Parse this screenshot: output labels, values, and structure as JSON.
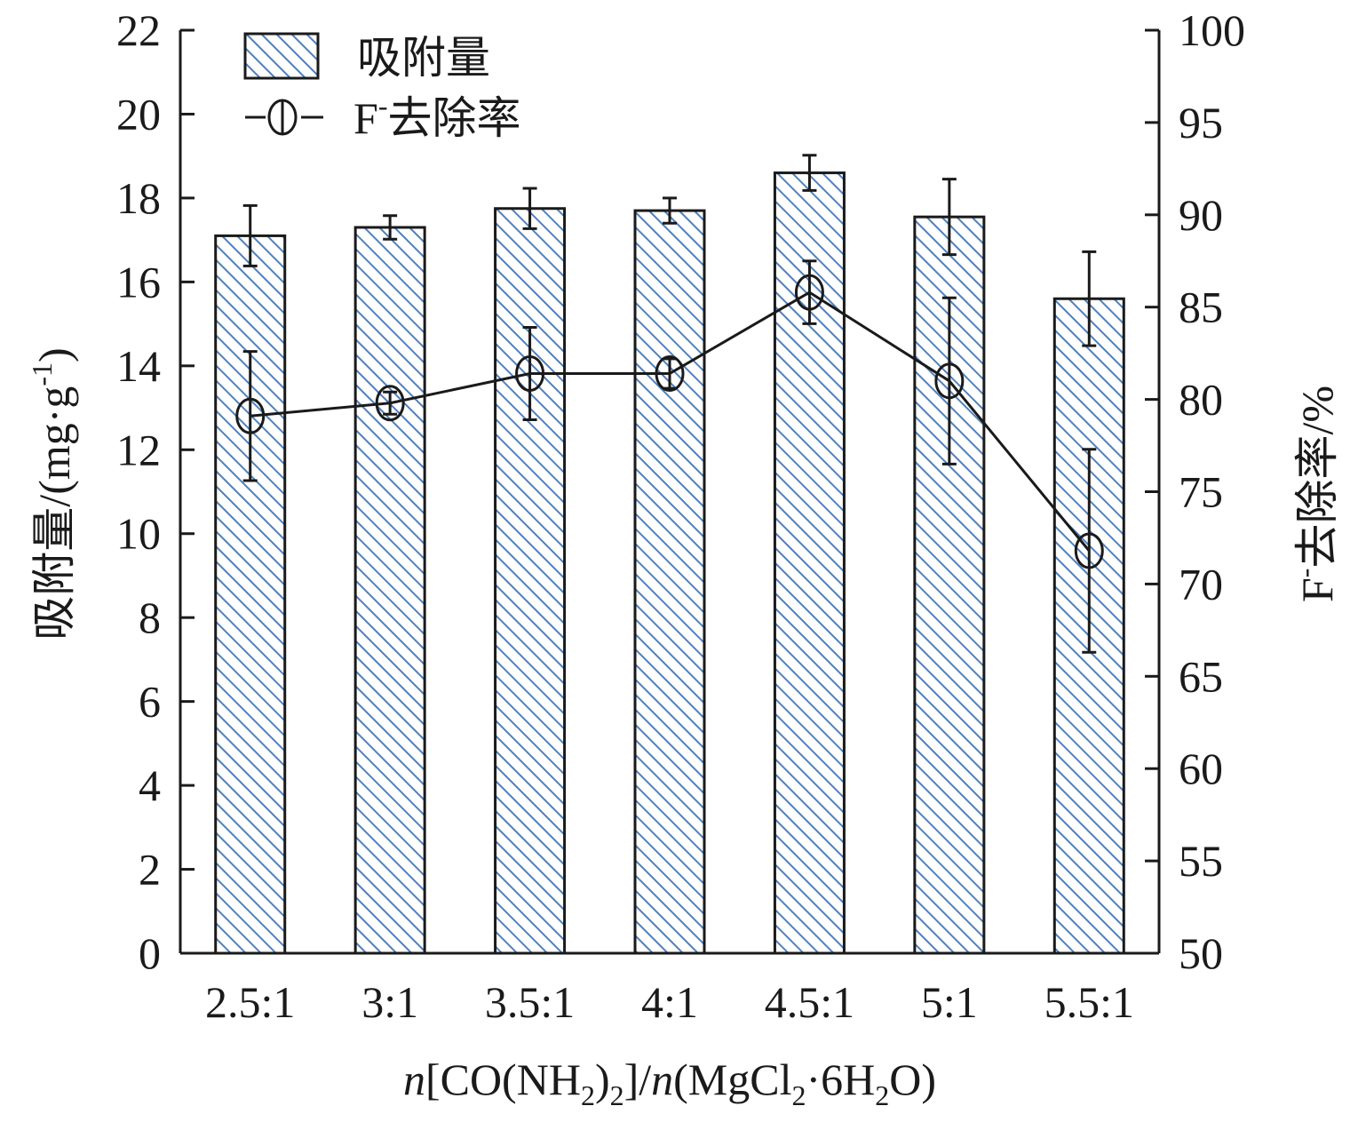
{
  "chart_data": {
    "type": "bar",
    "categories": [
      "2.5:1",
      "3:1",
      "3.5:1",
      "4:1",
      "4.5:1",
      "5:1",
      "5.5:1"
    ],
    "series": [
      {
        "name": "吸附量",
        "type": "bar",
        "axis": "left",
        "values": [
          17.1,
          17.3,
          17.75,
          17.7,
          18.6,
          17.55,
          15.6
        ],
        "errors": [
          0.72,
          0.28,
          0.48,
          0.3,
          0.42,
          0.9,
          1.12
        ]
      },
      {
        "name": "F⁻去除率",
        "type": "line",
        "axis": "right",
        "values": [
          79.1,
          79.8,
          81.4,
          81.4,
          85.8,
          81.0,
          71.8
        ],
        "errors": [
          3.5,
          0.6,
          2.5,
          0.8,
          1.7,
          4.5,
          5.5
        ]
      }
    ],
    "y_left": {
      "label": "吸附量/(mg·g",
      "label_sup": "-1",
      "label_close": ")",
      "ylim": [
        0,
        22
      ],
      "ticks": [
        0,
        2,
        4,
        6,
        8,
        10,
        12,
        14,
        16,
        18,
        20,
        22
      ]
    },
    "y_right": {
      "label_prefix": "F",
      "label_sup": "-",
      "label_rest": "去除率/%",
      "ylim": [
        50,
        100
      ],
      "ticks": [
        50,
        55,
        60,
        65,
        70,
        75,
        80,
        85,
        90,
        95,
        100
      ]
    },
    "x_axis": {
      "label_parts": [
        {
          "text": "n",
          "style": "italic"
        },
        {
          "text": "[CO(NH"
        },
        {
          "text": "2",
          "sub": true
        },
        {
          "text": ")"
        },
        {
          "text": "2",
          "sub": true
        },
        {
          "text": "]/"
        },
        {
          "text": "n",
          "style": "italic"
        },
        {
          "text": "(MgCl"
        },
        {
          "text": "2",
          "sub": true
        },
        {
          "text": "·6H"
        },
        {
          "text": "2",
          "sub": true
        },
        {
          "text": "O)"
        }
      ]
    },
    "legend": {
      "position": "top-left",
      "bar_label": "吸附量",
      "line_label_prefix": "F",
      "line_label_sup": "-",
      "line_label_rest": "去除率"
    },
    "grid": false,
    "colors": {
      "bar_hatch": "#4f81bd",
      "bar_edge": "#1a1a1a",
      "line": "#1a1a1a"
    }
  }
}
